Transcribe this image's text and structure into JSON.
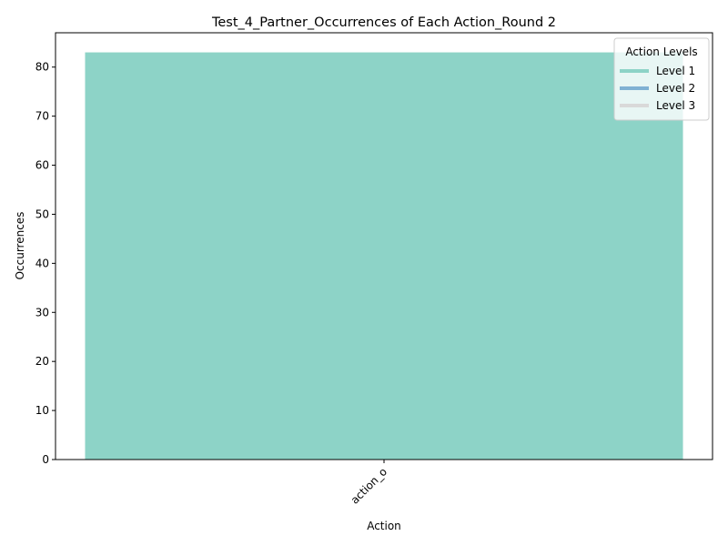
{
  "chart_data": {
    "type": "bar",
    "title": "Test_4_Partner_Occurrences of Each Action_Round 2",
    "xlabel": "Action",
    "ylabel": "Occurrences",
    "categories": [
      "action_o"
    ],
    "values": [
      83
    ],
    "bar_colors": [
      "#8dd3c7"
    ],
    "ylim": [
      0,
      87
    ],
    "yticks": [
      0,
      10,
      20,
      30,
      40,
      50,
      60,
      70,
      80
    ],
    "grid": false,
    "legend": {
      "title": "Action Levels",
      "placement": "top-right",
      "entries": [
        {
          "label": "Level 1",
          "color": "#8dd3c7"
        },
        {
          "label": "Level 2",
          "color": "#80b1d3"
        },
        {
          "label": "Level 3",
          "color": "#d9d9d9"
        }
      ]
    }
  }
}
